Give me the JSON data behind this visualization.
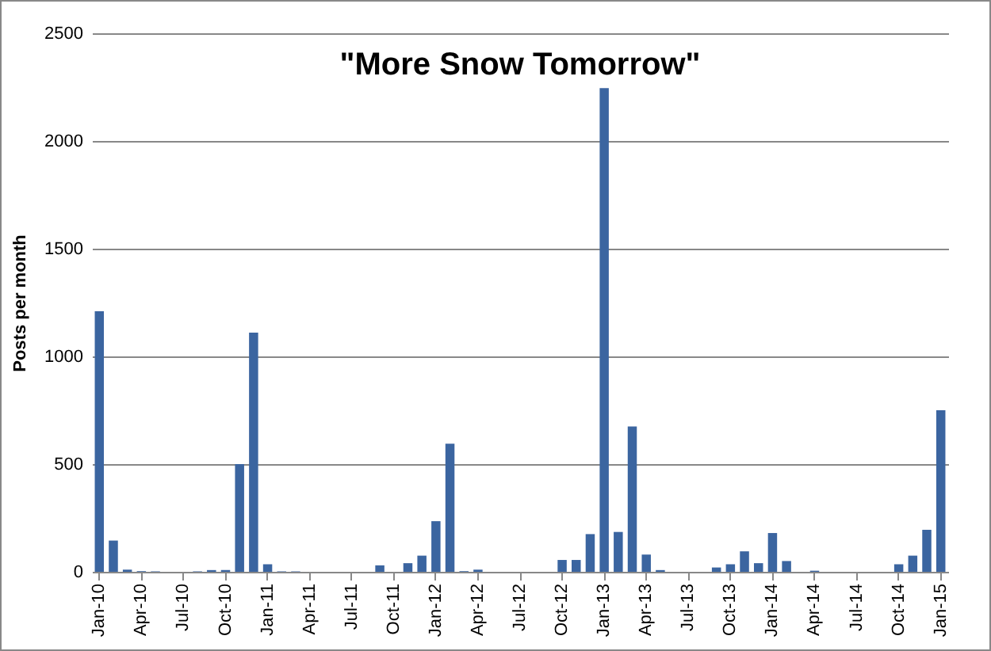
{
  "chart_data": {
    "type": "bar",
    "title": "\"More Snow Tomorrow\"",
    "ylabel": "Posts per month",
    "categories": [
      "Jan-10",
      null,
      null,
      "Apr-10",
      null,
      null,
      "Jul-10",
      null,
      null,
      "Oct-10",
      null,
      null,
      "Jan-11",
      null,
      null,
      "Apr-11",
      null,
      null,
      "Jul-11",
      null,
      null,
      "Oct-11",
      null,
      null,
      "Jan-12",
      null,
      null,
      "Apr-12",
      null,
      null,
      "Jul-12",
      null,
      null,
      "Oct-12",
      null,
      null,
      "Jan-13",
      null,
      null,
      "Apr-13",
      null,
      null,
      "Jul-13",
      null,
      null,
      "Oct-13",
      null,
      null,
      "Jan-14",
      null,
      null,
      "Apr-14",
      null,
      null,
      "Jul-14",
      null,
      null,
      "Oct-14",
      null,
      null,
      "Jan-15"
    ],
    "values": [
      1210,
      145,
      10,
      3,
      2,
      0,
      0,
      2,
      8,
      8,
      500,
      1110,
      35,
      2,
      2,
      0,
      0,
      0,
      0,
      0,
      30,
      0,
      40,
      75,
      235,
      595,
      3,
      10,
      0,
      0,
      0,
      0,
      0,
      55,
      55,
      175,
      2245,
      185,
      675,
      80,
      8,
      0,
      0,
      0,
      20,
      35,
      95,
      40,
      180,
      50,
      0,
      5,
      0,
      0,
      0,
      0,
      0,
      35,
      75,
      195,
      750
    ],
    "color": "#3b65a0",
    "ylim": [
      0,
      2500
    ],
    "yticks": [
      0,
      500,
      1000,
      1500,
      2000,
      2500
    ],
    "grid": "y"
  }
}
